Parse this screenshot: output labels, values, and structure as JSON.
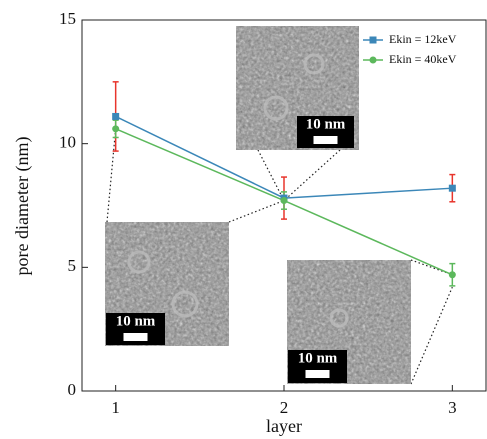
{
  "chart_data": {
    "type": "line",
    "x_label": "layer",
    "y_label": "pore diameter (nm)",
    "x": [
      1,
      2,
      3
    ],
    "series": [
      {
        "name": "Ekin = 12keV",
        "color": "#3b87b8",
        "marker": "square",
        "values": [
          11.1,
          7.8,
          8.2
        ],
        "errors": [
          1.4,
          0.85,
          0.55
        ],
        "error_color": "#e8352c"
      },
      {
        "name": "Ekin = 40keV",
        "color": "#5cb85c",
        "marker": "circle",
        "values": [
          10.6,
          7.7,
          4.7
        ],
        "errors": [
          0.35,
          0.35,
          0.45
        ],
        "error_color": "#5cb85c"
      }
    ],
    "xlim": [
      0.8,
      3.2
    ],
    "xticks": [
      1,
      2,
      3
    ],
    "ylim": [
      0,
      15
    ],
    "yticks": [
      0,
      5,
      10,
      15
    ],
    "legend": "upper right",
    "insets": [
      {
        "scale_label": "10 nm"
      },
      {
        "scale_label": "10 nm"
      },
      {
        "scale_label": "10 nm"
      }
    ]
  }
}
